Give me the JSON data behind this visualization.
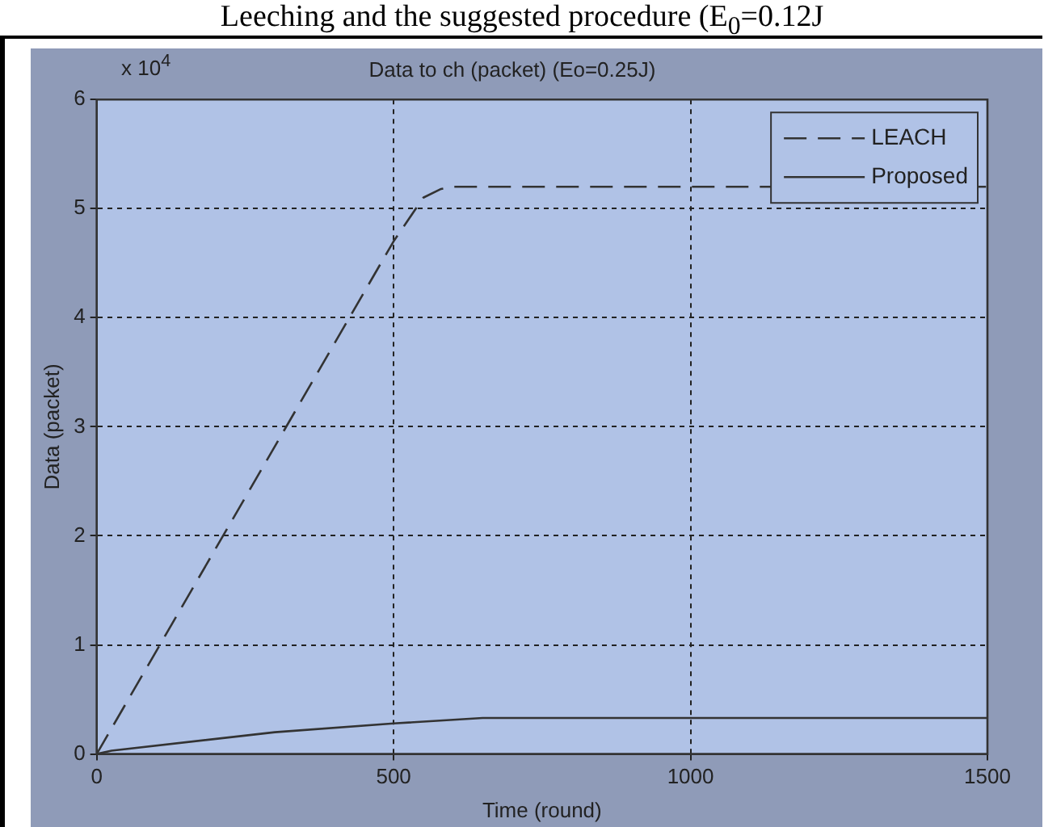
{
  "chart_data": {
    "type": "line",
    "title": "Data to ch (packet) (Eo=0.25J)",
    "xlabel": "Time (round)",
    "ylabel": "Data (packet)",
    "annotations": [
      "Leeching and the suggested procedure (E$_{0}$=0.12J",
      "x 10$^{4}$"
    ],
    "xlim": [
      0,
      1500
    ],
    "xticks": [
      0,
      500,
      1000,
      1500
    ],
    "ylim": [
      0,
      6
    ],
    "yticks": [
      0,
      1,
      2,
      3,
      4,
      5,
      6
    ],
    "grid": true,
    "legend": "top right",
    "marker": "none",
    "series": [
      {
        "name": "LEACH",
        "color": "#333333",
        "line_style": "dashed",
        "x": [
          0,
          500,
          550,
          580,
          600,
          1500
        ],
        "values": [
          0,
          4.7,
          5.1,
          5.18,
          5.2,
          5.2
        ]
      },
      {
        "name": "Proposed",
        "color": "#333333",
        "line_style": "solid",
        "x": [
          0,
          25,
          300,
          500,
          650,
          1500
        ],
        "values": [
          0,
          0.03,
          0.2,
          0.28,
          0.33,
          0.33
        ]
      }
    ]
  }
}
